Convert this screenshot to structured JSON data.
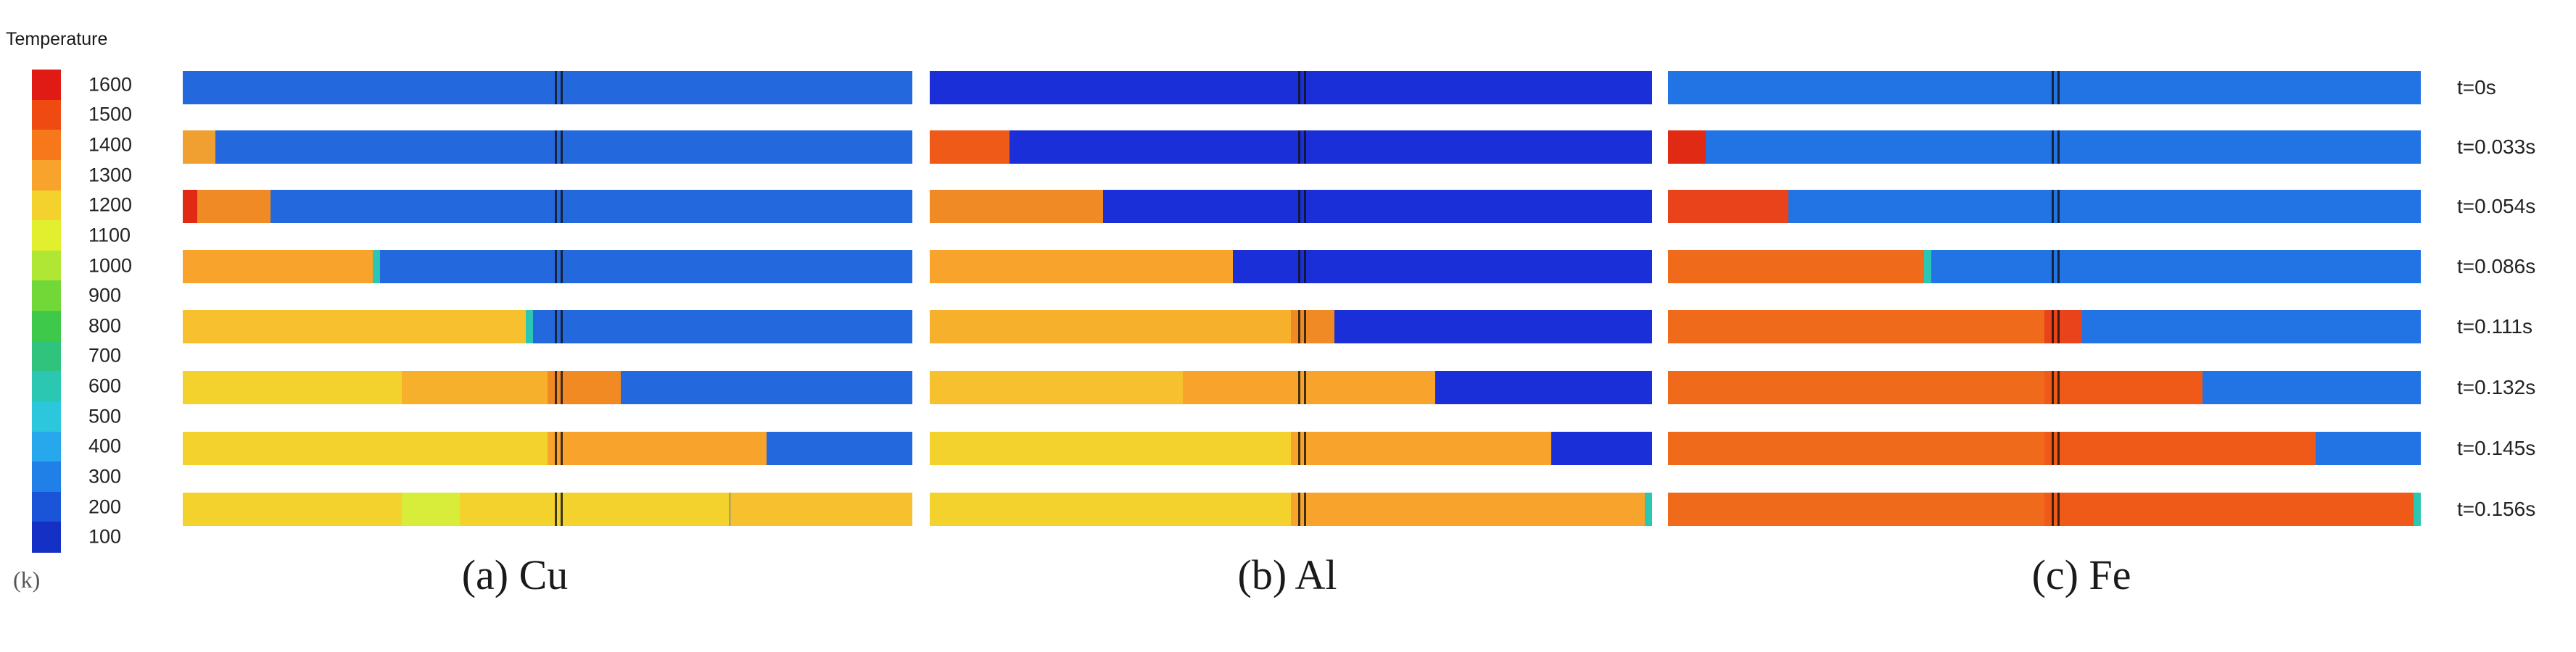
{
  "legend": {
    "title": "Temperature",
    "unit": "(k)",
    "ticks": [
      "1600",
      "1500",
      "1400",
      "1300",
      "1200",
      "1100",
      "1000",
      "900",
      "800",
      "700",
      "600",
      "500",
      "400",
      "300",
      "200",
      "100"
    ],
    "colors": [
      "#e01a14",
      "#ee4a12",
      "#f6781a",
      "#f7a32c",
      "#f4d22e",
      "#e2ef2e",
      "#b0e634",
      "#72d838",
      "#3fc94a",
      "#2fc37e",
      "#2bc7b3",
      "#2cc6dd",
      "#27a8ec",
      "#2080e8",
      "#1a55d8",
      "#1530c4"
    ]
  },
  "time_labels": [
    "t=0s",
    "t=0.033s",
    "t=0.054s",
    "t=0.086s",
    "t=0.111s",
    "t=0.132s",
    "t=0.145s",
    "t=0.156s"
  ],
  "panels": [
    {
      "caption": "(a) Cu",
      "base_color": "#2468de"
    },
    {
      "caption": "(b) Al",
      "base_color": "#1a2fd8"
    },
    {
      "caption": "(c) Fe",
      "base_color": "#2273e4"
    }
  ],
  "field_data": {
    "cu": [
      [
        {
          "to": 1,
          "c": "#2468de"
        }
      ],
      [
        {
          "to": 0.045,
          "c": "#f0a030"
        },
        {
          "to": 1,
          "c": "#2468de"
        }
      ],
      [
        {
          "to": 0.02,
          "c": "#e02a14"
        },
        {
          "to": 0.12,
          "c": "#f08a24"
        },
        {
          "to": 1,
          "c": "#2468de"
        }
      ],
      [
        {
          "to": 0.26,
          "c": "#f7a32c"
        },
        {
          "to": 0.27,
          "c": "#2bc7b3"
        },
        {
          "to": 1,
          "c": "#2468de"
        }
      ],
      [
        {
          "to": 0.47,
          "c": "#f7c02e"
        },
        {
          "to": 0.48,
          "c": "#2bc7b3"
        },
        {
          "to": 1,
          "c": "#2468de"
        }
      ],
      [
        {
          "to": 0.3,
          "c": "#f4d22e"
        },
        {
          "to": 0.5,
          "c": "#f7b02c"
        },
        {
          "to": 0.6,
          "c": "#f28a24"
        },
        {
          "to": 1,
          "c": "#2468de"
        }
      ],
      [
        {
          "to": 0.5,
          "c": "#f4d22e"
        },
        {
          "to": 0.8,
          "c": "#f7a32c"
        },
        {
          "to": 1,
          "c": "#2468de"
        }
      ],
      [
        {
          "to": 0.3,
          "c": "#f4d22e"
        },
        {
          "to": 0.38,
          "c": "#d8ec3a"
        },
        {
          "to": 0.75,
          "c": "#f4d22e"
        },
        {
          "to": 1,
          "c": "#f7c02e"
        }
      ]
    ],
    "al": [
      [
        {
          "to": 1,
          "c": "#1a2fd8"
        }
      ],
      [
        {
          "to": 0.11,
          "c": "#f05a18"
        },
        {
          "to": 1,
          "c": "#1a2fd8"
        }
      ],
      [
        {
          "to": 0.24,
          "c": "#f08a24"
        },
        {
          "to": 1,
          "c": "#1a2fd8"
        }
      ],
      [
        {
          "to": 0.42,
          "c": "#f7a32c"
        },
        {
          "to": 1,
          "c": "#1a2fd8"
        }
      ],
      [
        {
          "to": 0.5,
          "c": "#f7b02c"
        },
        {
          "to": 0.56,
          "c": "#f08a24"
        },
        {
          "to": 1,
          "c": "#1a2fd8"
        }
      ],
      [
        {
          "to": 0.35,
          "c": "#f7c02e"
        },
        {
          "to": 0.5,
          "c": "#f7a32c"
        },
        {
          "to": 0.7,
          "c": "#f7a32c"
        },
        {
          "to": 1,
          "c": "#1a2fd8"
        }
      ],
      [
        {
          "to": 0.5,
          "c": "#f4d22e"
        },
        {
          "to": 0.86,
          "c": "#f7a32c"
        },
        {
          "to": 1,
          "c": "#1a2fd8"
        }
      ],
      [
        {
          "to": 0.5,
          "c": "#f4d22e"
        },
        {
          "to": 0.99,
          "c": "#f7a32c"
        },
        {
          "to": 1,
          "c": "#2bc7b3"
        }
      ]
    ],
    "fe": [
      [
        {
          "to": 1,
          "c": "#2273e4"
        }
      ],
      [
        {
          "to": 0.05,
          "c": "#e02a14"
        },
        {
          "to": 1,
          "c": "#2273e4"
        }
      ],
      [
        {
          "to": 0.16,
          "c": "#e8431a"
        },
        {
          "to": 1,
          "c": "#2273e4"
        }
      ],
      [
        {
          "to": 0.34,
          "c": "#f06a1c"
        },
        {
          "to": 0.35,
          "c": "#2bc7b3"
        },
        {
          "to": 1,
          "c": "#2273e4"
        }
      ],
      [
        {
          "to": 0.5,
          "c": "#f06a1c"
        },
        {
          "to": 0.55,
          "c": "#e8431a"
        },
        {
          "to": 1,
          "c": "#2273e4"
        }
      ],
      [
        {
          "to": 0.5,
          "c": "#f06a1c"
        },
        {
          "to": 0.71,
          "c": "#f05a18"
        },
        {
          "to": 1,
          "c": "#2273e4"
        }
      ],
      [
        {
          "to": 0.5,
          "c": "#f06a1c"
        },
        {
          "to": 0.86,
          "c": "#f05a18"
        },
        {
          "to": 1,
          "c": "#2273e4"
        }
      ],
      [
        {
          "to": 0.5,
          "c": "#f06a1c"
        },
        {
          "to": 0.99,
          "c": "#f05a18"
        },
        {
          "to": 1,
          "c": "#2bc7b3"
        }
      ]
    ]
  }
}
